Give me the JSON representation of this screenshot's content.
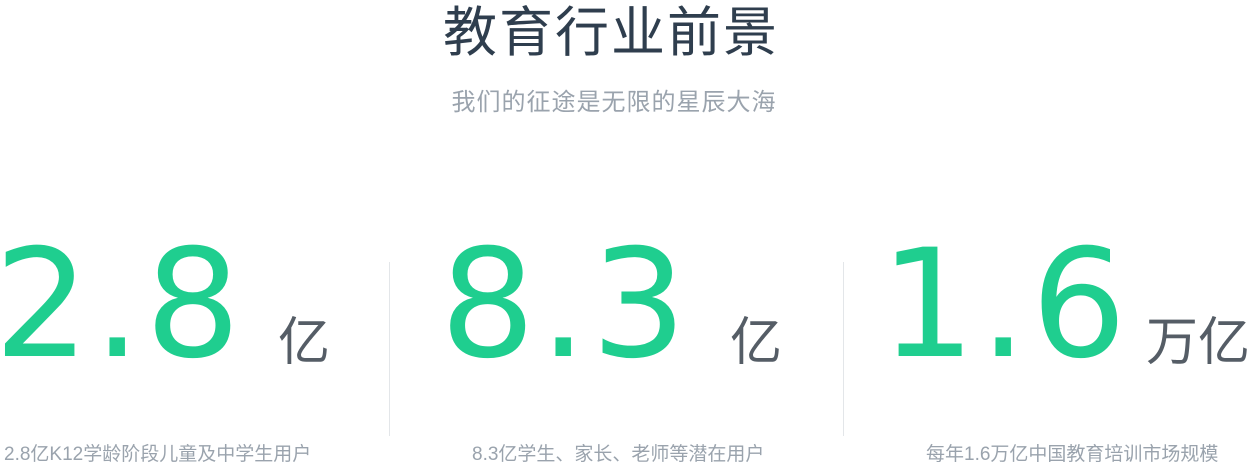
{
  "header": {
    "title": "教育行业前景",
    "subtitle": "我们的征途是无限的星辰大海"
  },
  "stats": [
    {
      "value": "2.8",
      "unit": "亿",
      "caption": "2.8亿K12学龄阶段儿童及中学生用户"
    },
    {
      "value": "8.3",
      "unit": "亿",
      "caption": "8.3亿学生、家长、老师等潜在用户"
    },
    {
      "value": "1.6",
      "unit": "万亿",
      "caption": "每年1.6万亿中国教育培训市场规模"
    }
  ],
  "colors": {
    "accent": "#1fce8f",
    "title": "#2f3e4e",
    "muted": "#9aa3ad",
    "unit": "#555d66",
    "divider": "#e3e6e9"
  }
}
